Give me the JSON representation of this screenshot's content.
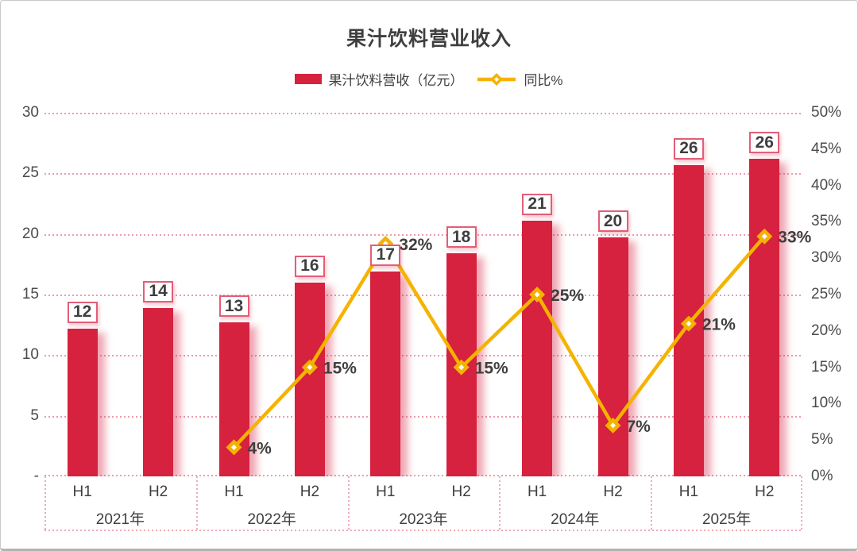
{
  "window": {
    "background": "#ffffff",
    "border_color": "#c9c9c9"
  },
  "chart_data": {
    "type": "combo-bar-line",
    "title": "果汁饮料营业收入",
    "legend": [
      {
        "label": "果汁饮料营收（亿元）",
        "swatch": "bar",
        "color": "#d6213f"
      },
      {
        "label": "同比%",
        "swatch": "line-diamond",
        "color": "#f5b301"
      }
    ],
    "categories": [
      "H1",
      "H2",
      "H1",
      "H2",
      "H1",
      "H2",
      "H1",
      "H2",
      "H1",
      "H2"
    ],
    "year_groups": [
      {
        "label": "2021年",
        "span": 2
      },
      {
        "label": "2022年",
        "span": 2
      },
      {
        "label": "2023年",
        "span": 2
      },
      {
        "label": "2024年",
        "span": 2
      },
      {
        "label": "2025年",
        "span": 2
      }
    ],
    "series": [
      {
        "name": "果汁饮料营收（亿元）",
        "type": "bar",
        "axis": "left",
        "color": "#d6213f",
        "values": [
          12,
          14,
          13,
          16,
          17,
          18,
          21,
          20,
          26,
          26
        ],
        "values_precise": [
          12.2,
          13.9,
          12.7,
          16.0,
          16.9,
          18.4,
          21.1,
          19.7,
          25.7,
          26.2
        ]
      },
      {
        "name": "同比%",
        "type": "line",
        "axis": "right",
        "color": "#f5b301",
        "values": [
          null,
          null,
          4,
          15,
          32,
          15,
          25,
          7,
          21,
          33
        ],
        "label_suffix": "%"
      }
    ],
    "left_axis": {
      "min": 0,
      "max": 30,
      "step": 5,
      "tick_labels": [
        "30",
        "25",
        "20",
        "15",
        "10",
        "5",
        "-"
      ]
    },
    "right_axis": {
      "min": 0,
      "max": 50,
      "step": 5,
      "suffix": "%"
    },
    "grid": {
      "color": "#ea9dab",
      "style": "dotted"
    },
    "text_color": "#3f3f3f"
  }
}
